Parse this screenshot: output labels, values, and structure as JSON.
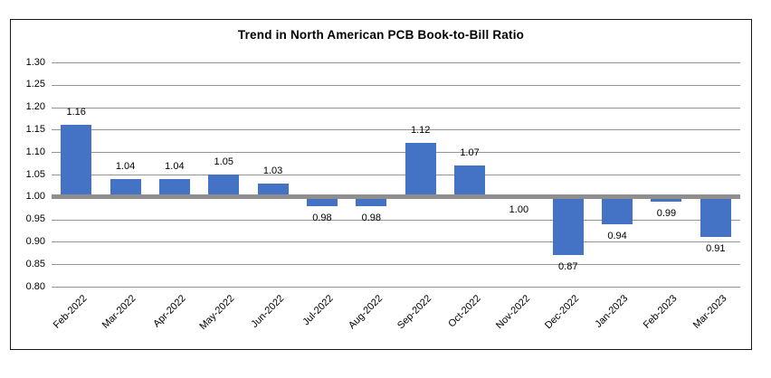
{
  "chart_data": {
    "type": "bar",
    "title": "Trend in North American PCB Book-to-Bill Ratio",
    "categories": [
      "Feb-2022",
      "Mar-2022",
      "Apr-2022",
      "May-2022",
      "Jun-2022",
      "Jul-2022",
      "Aug-2022",
      "Sep-2022",
      "Oct-2022",
      "Nov-2022",
      "Dec-2022",
      "Jan-2023",
      "Feb-2023",
      "Mar-2023"
    ],
    "values": [
      1.16,
      1.04,
      1.04,
      1.05,
      1.03,
      0.98,
      0.98,
      1.12,
      1.07,
      1.0,
      0.87,
      0.94,
      0.99,
      0.91
    ],
    "data_labels": [
      "1.16",
      "1.04",
      "1.04",
      "1.05",
      "1.03",
      "0.98",
      "0.98",
      "1.12",
      "1.07",
      "1.00",
      "0.87",
      "0.94",
      "0.99",
      "0.91"
    ],
    "y_tick_labels": [
      "1.30",
      "1.25",
      "1.20",
      "1.15",
      "1.10",
      "1.05",
      "1.00",
      "0.95",
      "0.90",
      "0.85",
      "0.80"
    ],
    "ylim": [
      0.8,
      1.3
    ],
    "y_tick_step": 0.05,
    "baseline": 1.0,
    "grid": true,
    "legend": "none",
    "xlabel": "",
    "ylabel": "",
    "colors": {
      "bar": "#4472C4",
      "gridline": "#949494",
      "baseline": "#8f8f8f",
      "border": "#1a1a1a",
      "text": "#000000",
      "background": "#ffffff"
    }
  }
}
